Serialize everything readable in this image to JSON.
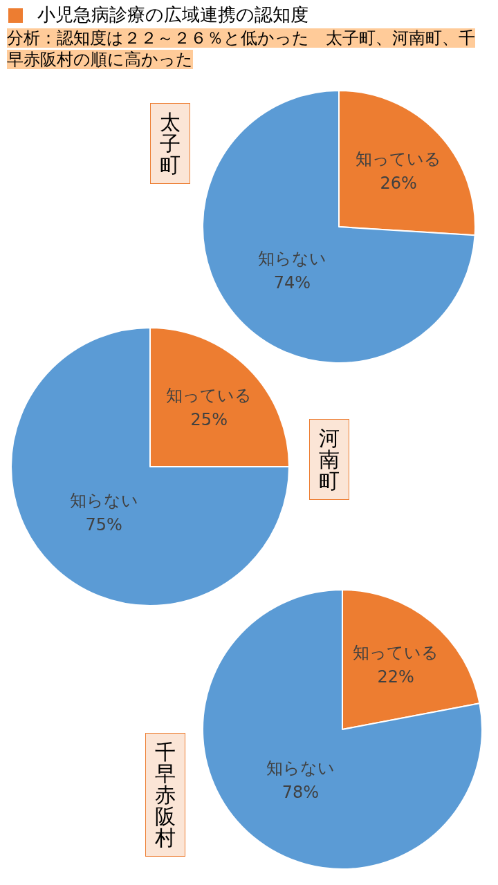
{
  "chart_data": [
    {
      "type": "other",
      "title": "小児急病診療の広域連携の認知度",
      "annotations": [
        "分析：認知度は２２～２６％と低かった　太子町、河南町、千早赤阪村の順に高かった"
      ]
    },
    {
      "type": "pie",
      "title": "太子町",
      "categories": [
        "知っている",
        "知らない"
      ],
      "values": [
        26,
        74
      ],
      "colors": [
        "#ED7D31",
        "#5B9BD5"
      ],
      "value_labels": [
        "26%",
        "74%"
      ]
    },
    {
      "type": "pie",
      "title": "河南町",
      "categories": [
        "知っている",
        "知らない"
      ],
      "values": [
        25,
        75
      ],
      "colors": [
        "#ED7D31",
        "#5B9BD5"
      ],
      "value_labels": [
        "25%",
        "75%"
      ]
    },
    {
      "type": "pie",
      "title": "千早赤阪村",
      "categories": [
        "知っている",
        "知らない"
      ],
      "values": [
        22,
        78
      ],
      "colors": [
        "#ED7D31",
        "#5B9BD5"
      ],
      "value_labels": [
        "22%",
        "78%"
      ]
    }
  ]
}
